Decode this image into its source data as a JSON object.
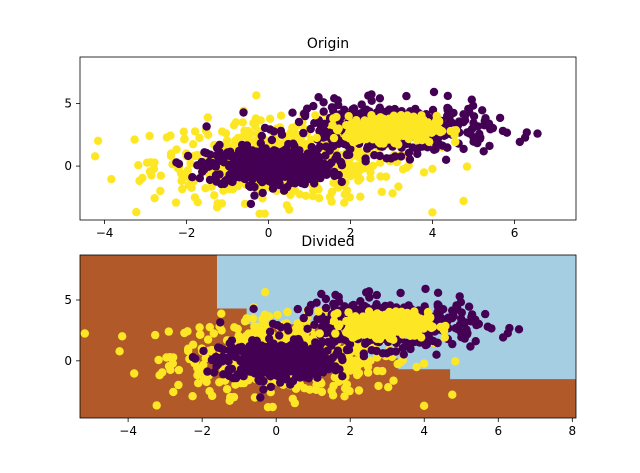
{
  "colors": {
    "purple": "#440154",
    "yellow": "#fde725",
    "brown": "#b15928",
    "lightblue": "#a6cee3"
  },
  "chart_data": [
    {
      "type": "scatter",
      "title": "Origin",
      "xlim": [
        -4.6,
        7.5
      ],
      "ylim": [
        -4.3,
        8.7
      ],
      "xticks": [
        -4,
        -2,
        0,
        2,
        4,
        6
      ],
      "yticks": [
        0,
        5
      ],
      "grid": false,
      "series": [
        {
          "color": "yellow",
          "description": "class A, broad cluster centered near (0.5, 0.5)",
          "center": [
            0.4,
            0.4
          ],
          "spread": [
            1.6,
            1.6
          ],
          "count": 520
        },
        {
          "color": "purple",
          "description": "class B, dense cluster centered near (0, 0)",
          "center": [
            0.0,
            0.0
          ],
          "spread": [
            0.75,
            0.75
          ],
          "count": 500
        },
        {
          "color": "purple",
          "description": "class B, cluster centered near (3, 3)",
          "center": [
            3.0,
            3.0
          ],
          "spread": [
            1.2,
            1.0
          ],
          "count": 420
        },
        {
          "color": "yellow",
          "description": "class A, dense cluster centered near (3, 3)",
          "center": [
            3.0,
            3.0
          ],
          "spread": [
            0.55,
            0.5
          ],
          "count": 380
        }
      ]
    },
    {
      "type": "scatter",
      "title": "Divided",
      "xlim": [
        -5.3,
        8.1
      ],
      "ylim": [
        -4.7,
        8.7
      ],
      "xticks": [
        -4,
        -2,
        0,
        2,
        4,
        6,
        8
      ],
      "yticks": [
        0,
        5
      ],
      "grid": false,
      "decision_regions": {
        "background": "brown",
        "region": "lightblue",
        "region_polygon": [
          [
            -1.6,
            8.7
          ],
          [
            8.1,
            8.7
          ],
          [
            8.1,
            -1.5
          ],
          [
            4.7,
            -1.5
          ],
          [
            4.7,
            -0.7
          ],
          [
            3.3,
            -0.7
          ],
          [
            3.3,
            0.2
          ],
          [
            2.2,
            0.2
          ],
          [
            2.2,
            1.5
          ],
          [
            1.3,
            1.5
          ],
          [
            1.3,
            3.0
          ],
          [
            -0.8,
            3.0
          ],
          [
            -0.8,
            4.3
          ],
          [
            -1.6,
            4.3
          ]
        ]
      },
      "series": "same points as first chart"
    }
  ]
}
